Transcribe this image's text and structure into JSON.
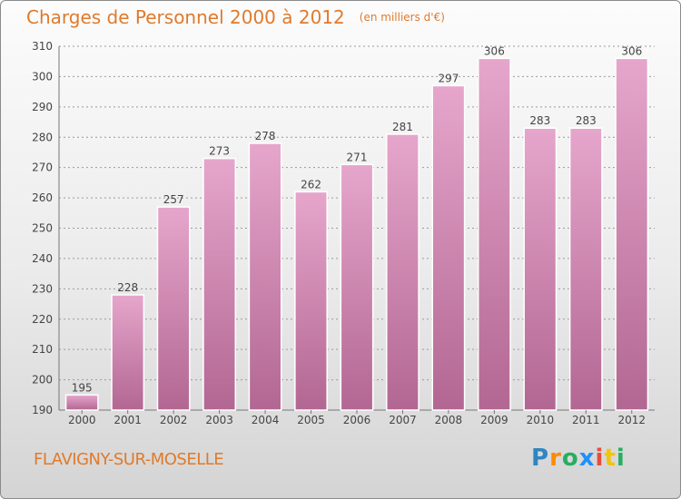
{
  "title": "Charges de Personnel 2000 à 2012",
  "unit_note": "(en milliers d'€)",
  "commune": "FLAVIGNY-SUR-MOSELLE",
  "brand": {
    "letters": [
      "P",
      "r",
      "o",
      "x",
      "i",
      "t",
      "i"
    ],
    "colors": [
      "#2e86c1",
      "#ff8a00",
      "#27ae60",
      "#1e90ff",
      "#e74c3c",
      "#f1c40f",
      "#27ae60"
    ]
  },
  "colors": {
    "bar": "#c97aa7",
    "bar_light": "#e6a6cc",
    "bar_dark": "#b26792",
    "accent": "#e07a2c"
  },
  "chart_data": {
    "type": "bar",
    "categories": [
      "2000",
      "2001",
      "2002",
      "2003",
      "2004",
      "2005",
      "2006",
      "2007",
      "2008",
      "2009",
      "2010",
      "2011",
      "2012"
    ],
    "values": [
      195,
      228,
      257,
      273,
      278,
      262,
      271,
      281,
      297,
      306,
      283,
      283,
      306
    ],
    "ylim": [
      190,
      310
    ],
    "yticks": [
      190,
      200,
      210,
      220,
      230,
      240,
      250,
      260,
      270,
      280,
      290,
      300,
      310
    ],
    "grid": true,
    "xlabel": "",
    "ylabel": ""
  }
}
